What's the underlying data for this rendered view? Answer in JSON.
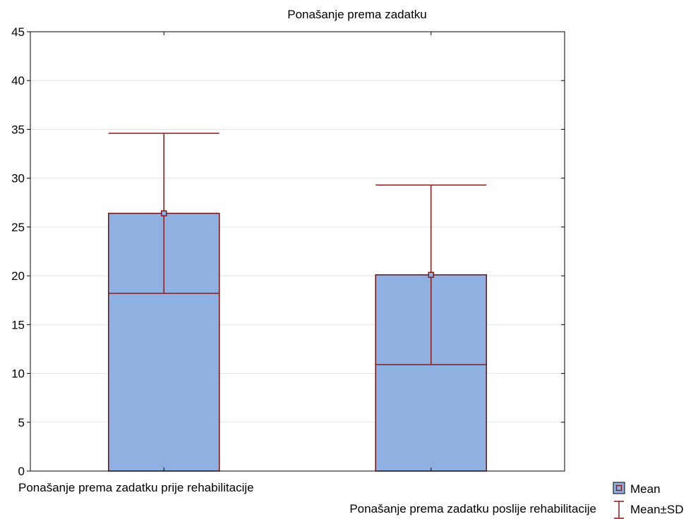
{
  "chart_data": {
    "type": "bar",
    "title": "Ponašanje prema zadatku",
    "categories": [
      "Ponašanje prema zadatku prije rehabilitacije",
      "Ponašanje prema zadatku poslije rehabilitacije"
    ],
    "series": [
      {
        "name": "Mean",
        "values": [
          26.4,
          20.1
        ]
      }
    ],
    "error_bars": {
      "name": "Mean±SD",
      "lower": [
        18.2,
        10.9
      ],
      "upper": [
        34.6,
        29.3
      ]
    },
    "ylim": [
      0,
      45
    ],
    "yticks": [
      0,
      5,
      10,
      15,
      20,
      25,
      30,
      35,
      40,
      45
    ],
    "grid": true,
    "legend_position": "bottom-right",
    "colors": {
      "bar_fill": "#8eb1e2",
      "bar_stroke": "#6b0f14",
      "error_bar": "#8b1a1a",
      "grid": "#e2e2e2",
      "axis": "#000000"
    }
  }
}
